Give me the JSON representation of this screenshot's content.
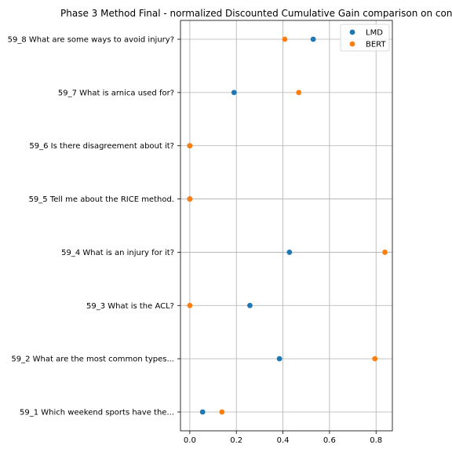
{
  "chart_data": {
    "type": "scatter",
    "title": "Phase 3 Method Final - normalized Discounted Cumulative Gain comparison on con",
    "xlabel": "",
    "ylabel": "",
    "xlim": [
      -0.04,
      0.87
    ],
    "x_ticks": [
      "0.0",
      "0.2",
      "0.4",
      "0.6",
      "0.8"
    ],
    "x_tick_values": [
      0.0,
      0.2,
      0.4,
      0.6,
      0.8
    ],
    "categories": [
      "59_1 Which weekend sports have the...",
      "59_2 What are the most common types...",
      "59_3 What is the ACL?",
      "59_4 What is an injury for it?",
      "59_5 Tell me about the RICE method.",
      "59_6 Is there disagreement about it?",
      "59_7 What is arnica used for?",
      "59_8 What are some ways to avoid injury?"
    ],
    "series": [
      {
        "name": "LMD",
        "color": "#1f77b4",
        "values": [
          0.055,
          0.385,
          0.258,
          0.428,
          0.0,
          0.0,
          0.19,
          0.53
        ]
      },
      {
        "name": "BERT",
        "color": "#ff7f0e",
        "values": [
          0.138,
          0.795,
          0.0,
          0.838,
          0.0,
          0.0,
          0.468,
          0.408
        ]
      }
    ],
    "grid": true,
    "legend_position": "top-right"
  }
}
